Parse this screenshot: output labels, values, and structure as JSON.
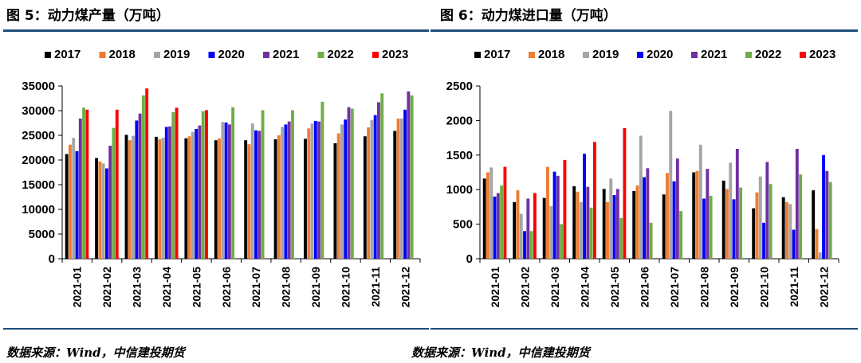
{
  "colors": {
    "2017": "#000000",
    "2018": "#ed7d31",
    "2019": "#a5a5a5",
    "2020": "#0000ff",
    "2021": "#7030a0",
    "2022": "#70ad47",
    "2023": "#ff0000",
    "rule": "#1f4e79"
  },
  "chart_data": [
    {
      "type": "bar",
      "title": "图 5：动力煤产量（万吨）",
      "source": "数据来源：Wind，中信建投期货",
      "ylim": [
        0,
        35000
      ],
      "yticks": [
        0,
        5000,
        10000,
        15000,
        20000,
        25000,
        30000,
        35000
      ],
      "categories": [
        "2021-01",
        "2021-02",
        "2021-03",
        "2021-04",
        "2021-05",
        "2021-06",
        "2021-07",
        "2021-08",
        "2021-09",
        "2021-10",
        "2021-11",
        "2021-12"
      ],
      "legend_position": "top",
      "series": [
        {
          "name": "2017",
          "values": [
            21200,
            20400,
            25100,
            24700,
            24400,
            24000,
            24000,
            24200,
            24300,
            23400,
            24800,
            25900
          ]
        },
        {
          "name": "2018",
          "values": [
            23100,
            19700,
            24000,
            24200,
            24800,
            24400,
            23200,
            25000,
            26400,
            25400,
            26600,
            28400
          ]
        },
        {
          "name": "2019",
          "values": [
            24500,
            19300,
            24900,
            24500,
            25700,
            27700,
            27400,
            26700,
            27400,
            27200,
            28100,
            28400
          ]
        },
        {
          "name": "2020",
          "values": [
            21800,
            18300,
            28000,
            26700,
            26300,
            27600,
            26000,
            27200,
            27900,
            28200,
            29100,
            30200
          ]
        },
        {
          "name": "2021",
          "values": [
            28400,
            22900,
            29400,
            26800,
            27000,
            27200,
            25900,
            27800,
            27800,
            30700,
            31700,
            33900
          ]
        },
        {
          "name": "2022",
          "values": [
            30600,
            26500,
            33100,
            29700,
            29900,
            30700,
            30100,
            30100,
            31800,
            30400,
            33500,
            33100
          ]
        },
        {
          "name": "2023",
          "values": [
            30200,
            30200,
            34500,
            30600,
            30100,
            null,
            null,
            null,
            null,
            null,
            null,
            null
          ]
        }
      ]
    },
    {
      "type": "bar",
      "title": "图 6：动力煤进口量（万吨）",
      "source": "数据来源：Wind，中信建投期货",
      "ylim": [
        0,
        2500
      ],
      "yticks": [
        0,
        500,
        1000,
        1500,
        2000,
        2500
      ],
      "categories": [
        "2021-01",
        "2021-02",
        "2021-03",
        "2021-04",
        "2021-05",
        "2021-06",
        "2021-07",
        "2021-08",
        "2021-09",
        "2021-10",
        "2021-11",
        "2021-12"
      ],
      "legend_position": "top",
      "series": [
        {
          "name": "2017",
          "values": [
            1160,
            820,
            880,
            1050,
            1010,
            980,
            930,
            1250,
            1130,
            730,
            890,
            990
          ]
        },
        {
          "name": "2018",
          "values": [
            1250,
            990,
            1330,
            970,
            820,
            1060,
            1240,
            1270,
            1010,
            960,
            820,
            430
          ]
        },
        {
          "name": "2019",
          "values": [
            1320,
            650,
            760,
            820,
            1160,
            1780,
            2140,
            1650,
            1390,
            1190,
            790,
            90
          ]
        },
        {
          "name": "2020",
          "values": [
            900,
            400,
            1260,
            1520,
            920,
            1180,
            1120,
            870,
            860,
            520,
            420,
            1500
          ]
        },
        {
          "name": "2021",
          "values": [
            950,
            870,
            1200,
            1040,
            1010,
            1310,
            1450,
            1300,
            1590,
            1400,
            1590,
            1270
          ]
        },
        {
          "name": "2022",
          "values": [
            1060,
            400,
            500,
            740,
            590,
            520,
            690,
            910,
            1030,
            1080,
            1220,
            1110
          ]
        },
        {
          "name": "2023",
          "values": [
            1330,
            950,
            1430,
            1690,
            1890,
            null,
            null,
            null,
            null,
            null,
            null,
            null
          ]
        }
      ]
    }
  ]
}
